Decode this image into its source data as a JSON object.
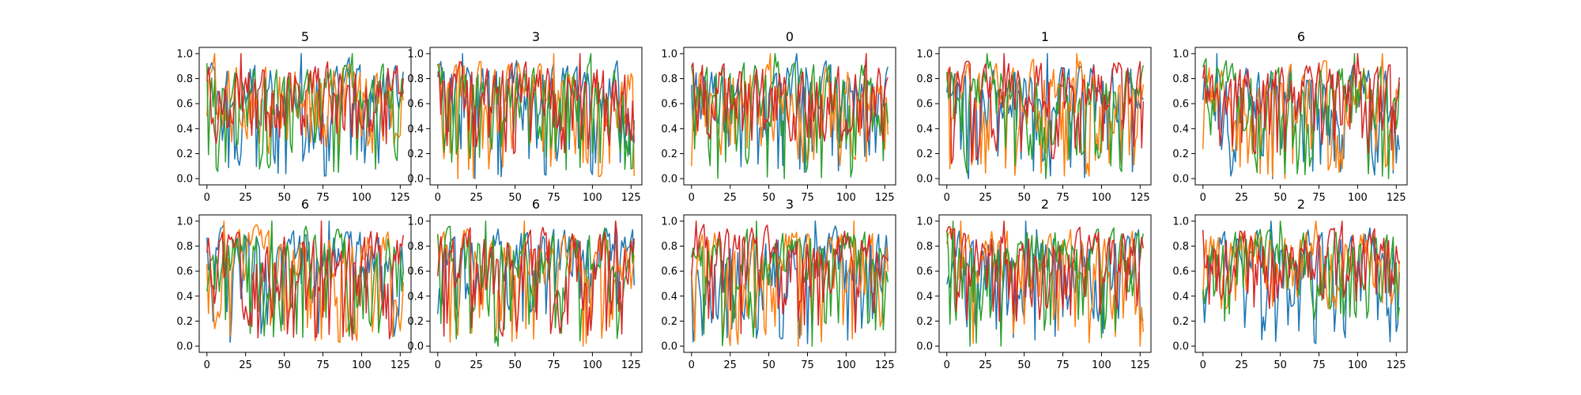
{
  "chart_data": {
    "type": "line",
    "layout": "2x5 small multiples",
    "series_colors": [
      "#1f77b4",
      "#ff7f0e",
      "#2ca02c",
      "#d62728"
    ],
    "x_range": [
      0,
      127
    ],
    "xlim": [
      -5,
      132
    ],
    "ylim": [
      -0.05,
      1.05
    ],
    "xticks": [
      0,
      25,
      50,
      75,
      100,
      125
    ],
    "yticks": [
      0.0,
      0.2,
      0.4,
      0.6,
      0.8,
      1.0
    ],
    "xtick_labels": [
      "0",
      "25",
      "50",
      "75",
      "100",
      "125"
    ],
    "ytick_labels": [
      "0.0",
      "0.2",
      "0.4",
      "0.6",
      "0.8",
      "1.0"
    ],
    "grid": false,
    "panels": [
      {
        "title": "5",
        "series": [
          {
            "min": 0.02,
            "max": 1.0
          },
          {
            "min": 0.2,
            "max": 1.0
          },
          {
            "min": 0.05,
            "max": 1.0
          },
          {
            "min": 0.28,
            "max": 1.0
          }
        ]
      },
      {
        "title": "3",
        "series": [
          {
            "min": 0.0,
            "max": 1.0
          },
          {
            "min": 0.0,
            "max": 1.0
          },
          {
            "min": 0.07,
            "max": 1.0
          },
          {
            "min": 0.2,
            "max": 1.0
          }
        ]
      },
      {
        "title": "0",
        "series": [
          {
            "min": 0.05,
            "max": 1.0
          },
          {
            "min": 0.1,
            "max": 1.0
          },
          {
            "min": 0.0,
            "max": 1.0
          },
          {
            "min": 0.3,
            "max": 1.0
          }
        ]
      },
      {
        "title": "1",
        "series": [
          {
            "min": 0.0,
            "max": 1.0
          },
          {
            "min": 0.02,
            "max": 1.0
          },
          {
            "min": 0.0,
            "max": 1.0
          },
          {
            "min": 0.12,
            "max": 1.0
          }
        ]
      },
      {
        "title": "6",
        "series": [
          {
            "min": 0.0,
            "max": 1.0
          },
          {
            "min": 0.0,
            "max": 1.0
          },
          {
            "min": 0.0,
            "max": 1.0
          },
          {
            "min": 0.2,
            "max": 1.0
          }
        ]
      },
      {
        "title": "6",
        "series": [
          {
            "min": 0.03,
            "max": 1.0
          },
          {
            "min": 0.03,
            "max": 1.0
          },
          {
            "min": 0.07,
            "max": 1.0
          },
          {
            "min": 0.05,
            "max": 1.0
          }
        ]
      },
      {
        "title": "6",
        "series": [
          {
            "min": 0.2,
            "max": 1.0
          },
          {
            "min": 0.0,
            "max": 1.0
          },
          {
            "min": 0.0,
            "max": 1.0
          },
          {
            "min": 0.08,
            "max": 1.0
          }
        ]
      },
      {
        "title": "3",
        "series": [
          {
            "min": 0.02,
            "max": 1.0
          },
          {
            "min": 0.0,
            "max": 1.0
          },
          {
            "min": 0.0,
            "max": 1.0
          },
          {
            "min": 0.1,
            "max": 1.0
          }
        ]
      },
      {
        "title": "2",
        "series": [
          {
            "min": 0.05,
            "max": 1.0
          },
          {
            "min": 0.0,
            "max": 1.0
          },
          {
            "min": 0.0,
            "max": 1.0
          },
          {
            "min": 0.2,
            "max": 1.0
          }
        ]
      },
      {
        "title": "2",
        "series": [
          {
            "min": 0.02,
            "max": 1.0
          },
          {
            "min": 0.3,
            "max": 1.0
          },
          {
            "min": 0.2,
            "max": 1.0
          },
          {
            "min": 0.3,
            "max": 1.0
          }
        ]
      }
    ]
  }
}
